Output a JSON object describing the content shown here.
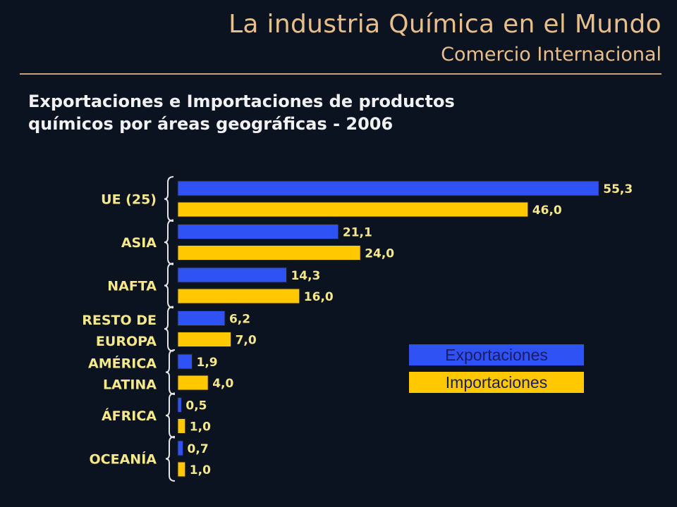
{
  "header": {
    "title": "La industria Química en el Mundo",
    "subtitle": "Comercio Internacional"
  },
  "colors": {
    "background": "#0b1220",
    "header_text": "#e8bf8c",
    "exportaciones": "#2f52f5",
    "importaciones": "#ffc800",
    "labels": "#f5e88a"
  },
  "chart_data": {
    "type": "bar",
    "orientation": "horizontal",
    "title_lines": [
      "Exportaciones e Importaciones de productos",
      "químicos por áreas geográficas - 2006"
    ],
    "categories": [
      [
        "UE (25)"
      ],
      [
        "ASIA"
      ],
      [
        "NAFTA"
      ],
      [
        "RESTO DE",
        "EUROPA"
      ],
      [
        "AMÉRICA",
        "LATINA"
      ],
      [
        "ÁFRICA"
      ],
      [
        "OCEANÍA"
      ]
    ],
    "series": [
      {
        "name": "Exportaciones",
        "values": [
          55.3,
          21.1,
          14.3,
          6.2,
          1.9,
          0.5,
          0.7
        ],
        "labels": [
          "55,3",
          "21,1",
          "14,3",
          "6,2",
          "1,9",
          "0,5",
          "0,7"
        ]
      },
      {
        "name": "Importaciones",
        "values": [
          46.0,
          24.0,
          16.0,
          7.0,
          4.0,
          1.0,
          1.0
        ],
        "labels": [
          "46,0",
          "24,0",
          "16,0",
          "7,0",
          "4,0",
          "1,0",
          "1,0"
        ]
      }
    ],
    "grid": false,
    "legend_position": "right"
  }
}
